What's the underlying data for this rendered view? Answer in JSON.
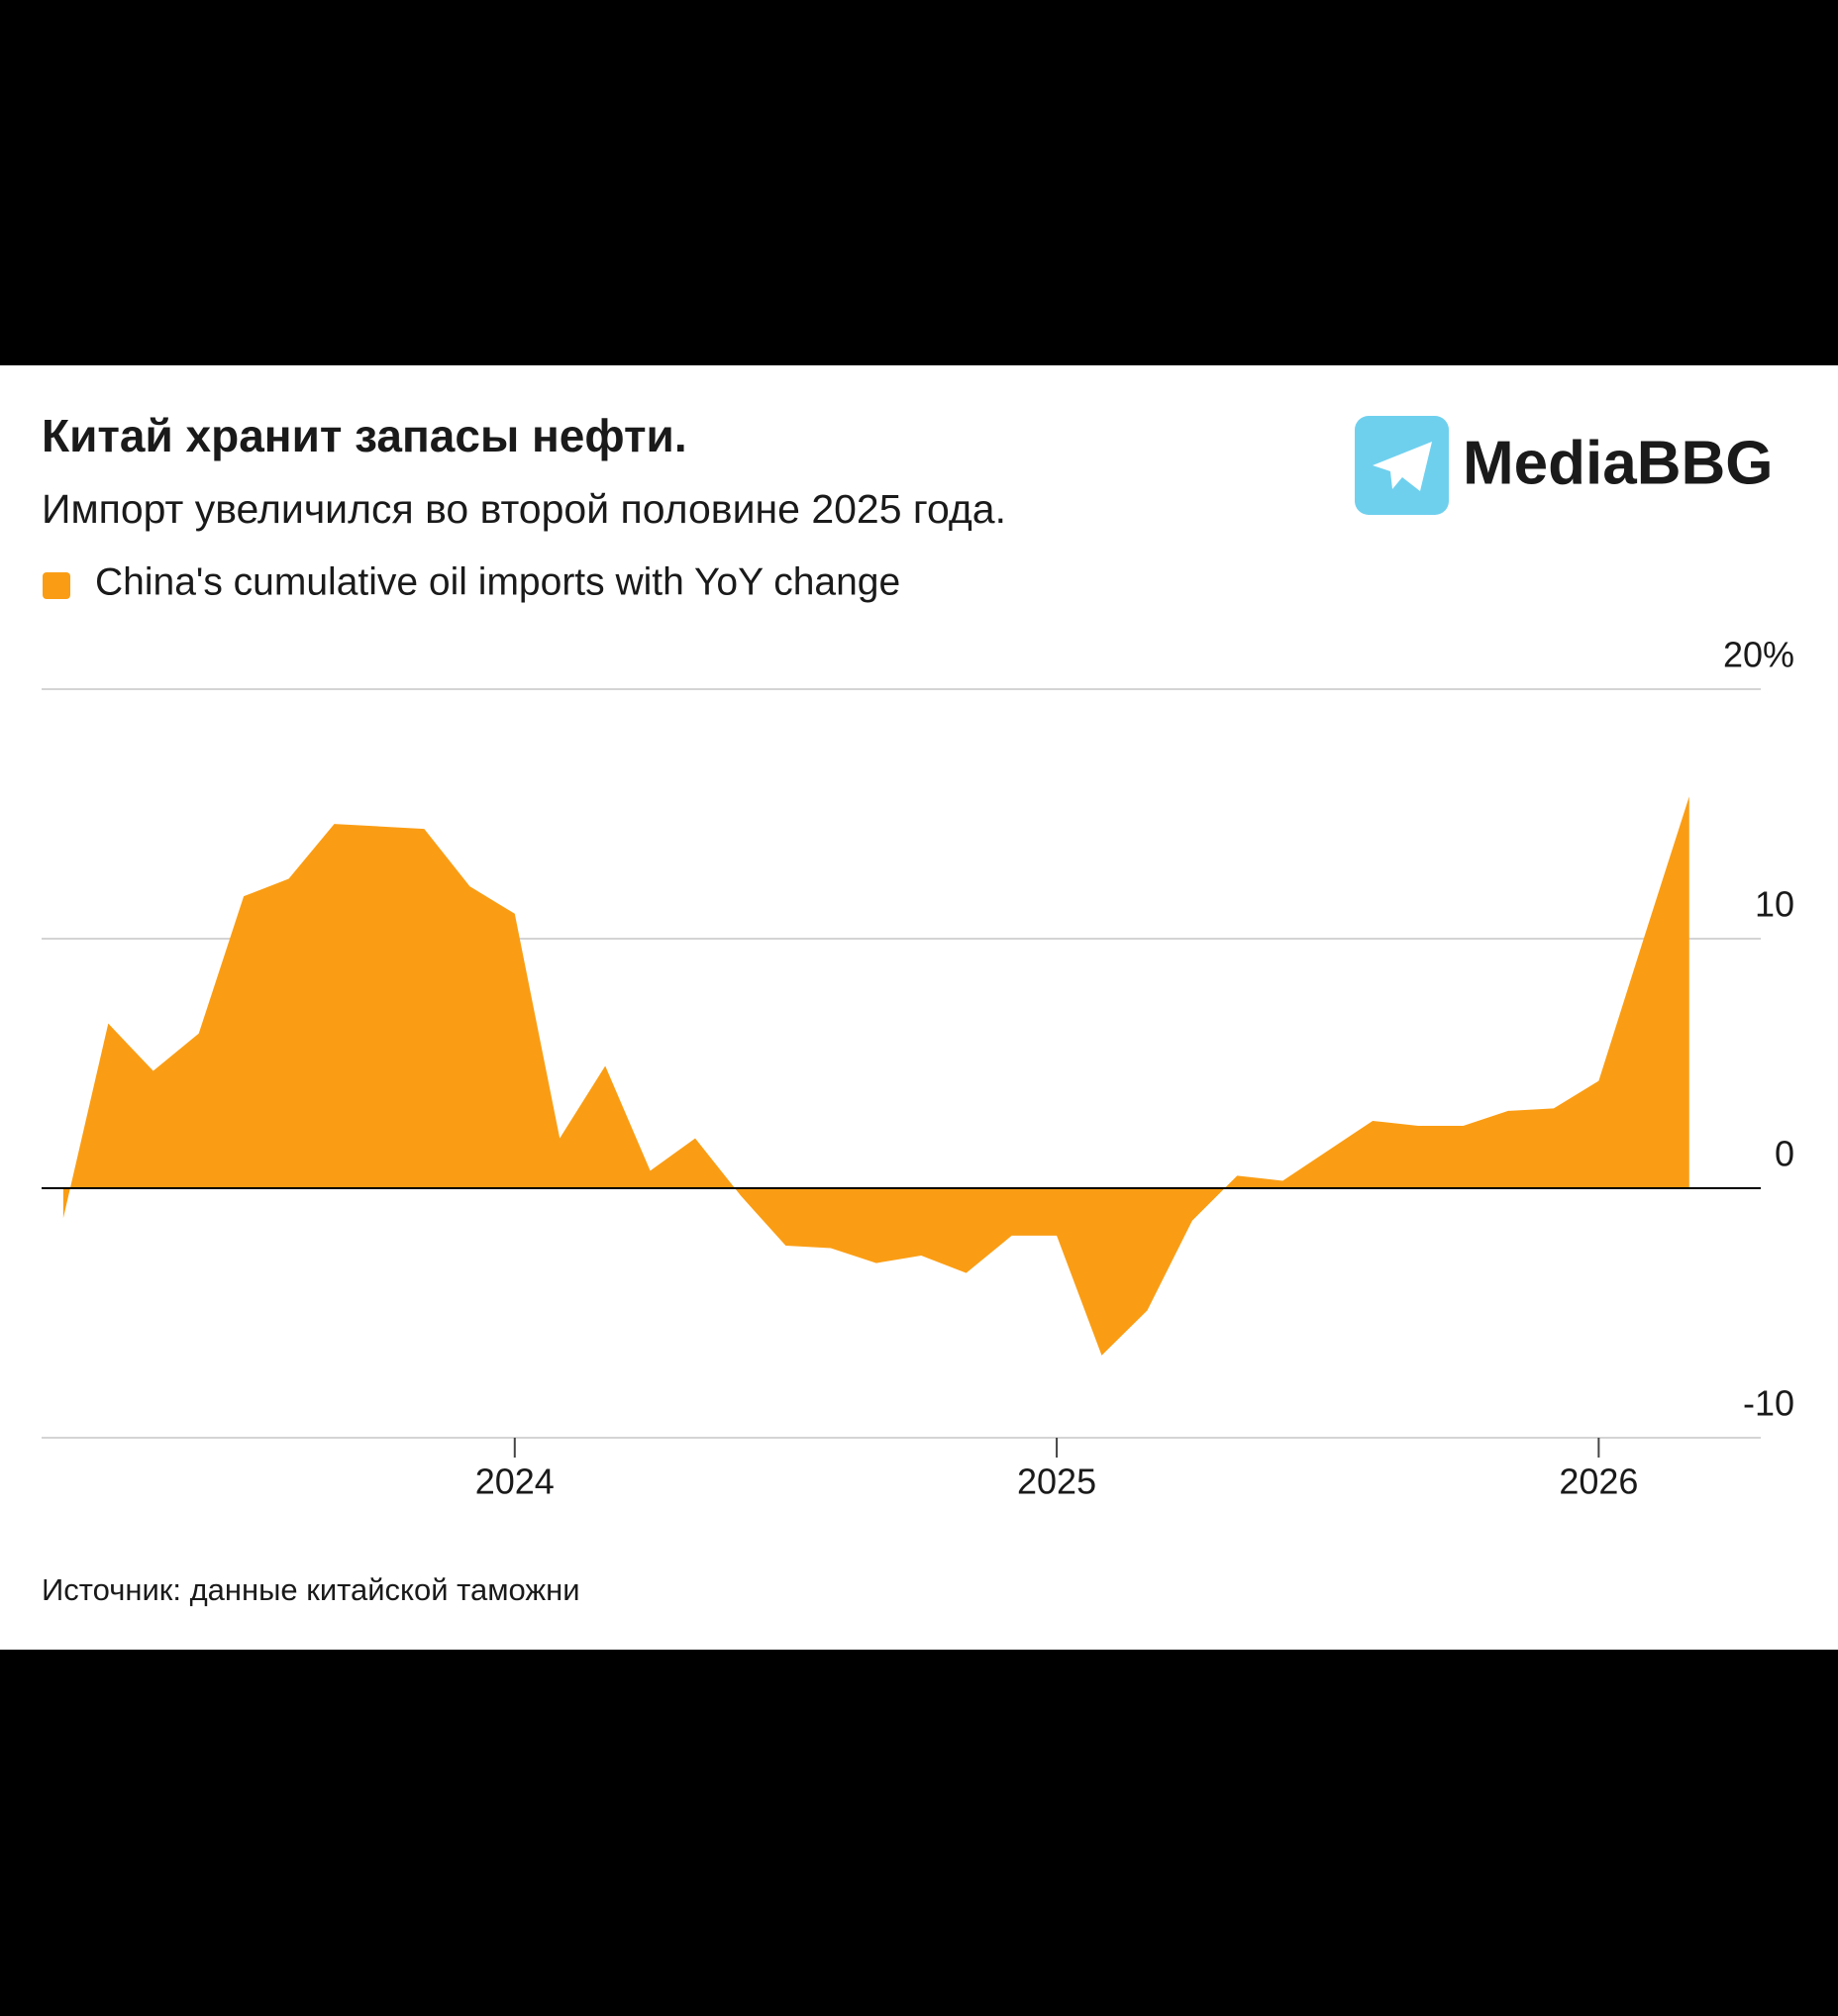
{
  "chart_data": {
    "type": "area",
    "title": "Китай хранит запасы нефти.",
    "subtitle": "Импорт увеличился во второй половине 2025 года.",
    "source": "Источник: данные китайской таможни",
    "watermark": "MediaBBG",
    "x": [
      2023.167,
      2023.25,
      2023.333,
      2023.417,
      2023.5,
      2023.583,
      2023.667,
      2023.75,
      2023.833,
      2023.917,
      2024.0,
      2024.083,
      2024.167,
      2024.25,
      2024.333,
      2024.417,
      2024.5,
      2024.583,
      2024.667,
      2024.75,
      2024.833,
      2024.917,
      2025.0,
      2025.083,
      2025.167,
      2025.25,
      2025.333,
      2025.417,
      2025.5,
      2025.583,
      2025.667,
      2025.75,
      2025.833,
      2025.917,
      2026.0,
      2026.083,
      2026.167
    ],
    "series": [
      {
        "name": "China's cumulative oil imports with YoY change",
        "color": "#fa9d14",
        "values": [
          -1.2,
          6.6,
          4.7,
          6.2,
          11.7,
          12.4,
          14.6,
          14.5,
          14.4,
          12.1,
          11.0,
          2.0,
          4.9,
          0.7,
          2.0,
          -0.3,
          -2.3,
          -2.4,
          -3.0,
          -2.7,
          -3.4,
          -1.9,
          -1.9,
          -6.7,
          -4.9,
          -1.3,
          0.5,
          0.3,
          1.5,
          2.7,
          2.5,
          2.5,
          3.1,
          3.2,
          4.3,
          10.0,
          15.7
        ]
      }
    ],
    "xlim": [
      2023.127,
      2026.299
    ],
    "xticks": [
      2024,
      2025,
      2026
    ],
    "ylim": [
      -10,
      20
    ],
    "yticks": [
      {
        "value": 20,
        "label": "20%"
      },
      10,
      0,
      -10
    ],
    "grid": true
  }
}
